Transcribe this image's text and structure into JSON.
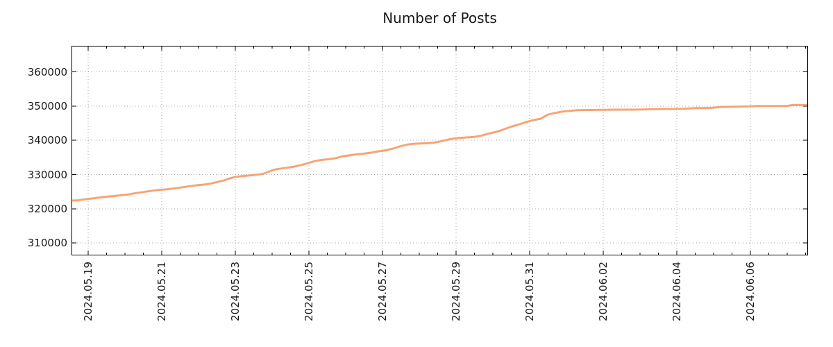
{
  "chart": {
    "title": "Number of Posts"
  },
  "chart_data": {
    "type": "line",
    "title": "Number of Posts",
    "xlabel": "",
    "ylabel": "",
    "legend_position": "none",
    "grid": "dotted",
    "line_color": "#F7A474",
    "axis_color": "#000000",
    "grid_color": "#a6a6a6",
    "text_color": "#1a1a1a",
    "y_ticks": [
      310000,
      320000,
      330000,
      340000,
      350000,
      360000
    ],
    "x_ticks": [
      {
        "label": "2024.05.19",
        "day": 0
      },
      {
        "label": "2024.05.21",
        "day": 2
      },
      {
        "label": "2024.05.23",
        "day": 4
      },
      {
        "label": "2024.05.25",
        "day": 6
      },
      {
        "label": "2024.05.27",
        "day": 8
      },
      {
        "label": "2024.05.29",
        "day": 10
      },
      {
        "label": "2024.05.31",
        "day": 12
      },
      {
        "label": "2024.06.02",
        "day": 14
      },
      {
        "label": "2024.06.04",
        "day": 16
      },
      {
        "label": "2024.06.06",
        "day": 18
      }
    ],
    "x_minor_tick_interval_days": 0.5,
    "x_range_days": [
      -0.45,
      19.57
    ],
    "y_range": [
      306400,
      367600
    ],
    "series": [
      {
        "name": "Number of Posts",
        "points": [
          [
            -0.45,
            322400
          ],
          [
            -0.3,
            322450
          ],
          [
            -0.15,
            322700
          ],
          [
            0,
            322900
          ],
          [
            0.15,
            323050
          ],
          [
            0.3,
            323300
          ],
          [
            0.5,
            323550
          ],
          [
            0.7,
            323700
          ],
          [
            0.9,
            324000
          ],
          [
            1.1,
            324200
          ],
          [
            1.3,
            324600
          ],
          [
            1.5,
            324900
          ],
          [
            1.7,
            325200
          ],
          [
            1.9,
            325500
          ],
          [
            2.1,
            325650
          ],
          [
            2.3,
            325900
          ],
          [
            2.5,
            326200
          ],
          [
            2.7,
            326500
          ],
          [
            2.9,
            326800
          ],
          [
            3.1,
            327000
          ],
          [
            3.3,
            327300
          ],
          [
            3.5,
            327800
          ],
          [
            3.7,
            328300
          ],
          [
            3.85,
            328900
          ],
          [
            4.0,
            329300
          ],
          [
            4.15,
            329500
          ],
          [
            4.35,
            329700
          ],
          [
            4.55,
            329900
          ],
          [
            4.75,
            330200
          ],
          [
            4.9,
            330800
          ],
          [
            5.05,
            331400
          ],
          [
            5.2,
            331700
          ],
          [
            5.4,
            332000
          ],
          [
            5.6,
            332300
          ],
          [
            5.8,
            332800
          ],
          [
            6.0,
            333400
          ],
          [
            6.15,
            333900
          ],
          [
            6.3,
            334200
          ],
          [
            6.5,
            334450
          ],
          [
            6.7,
            334700
          ],
          [
            6.9,
            335300
          ],
          [
            7.1,
            335600
          ],
          [
            7.3,
            335900
          ],
          [
            7.5,
            336100
          ],
          [
            7.7,
            336400
          ],
          [
            7.9,
            336800
          ],
          [
            8.1,
            337100
          ],
          [
            8.3,
            337600
          ],
          [
            8.5,
            338300
          ],
          [
            8.7,
            338800
          ],
          [
            8.85,
            339000
          ],
          [
            9.1,
            339100
          ],
          [
            9.3,
            339200
          ],
          [
            9.5,
            339500
          ],
          [
            9.7,
            340000
          ],
          [
            9.9,
            340450
          ],
          [
            10.1,
            340700
          ],
          [
            10.3,
            340850
          ],
          [
            10.5,
            341000
          ],
          [
            10.7,
            341400
          ],
          [
            10.9,
            342000
          ],
          [
            11.1,
            342500
          ],
          [
            11.3,
            343200
          ],
          [
            11.5,
            344000
          ],
          [
            11.7,
            344600
          ],
          [
            11.9,
            345300
          ],
          [
            12.1,
            345900
          ],
          [
            12.3,
            346300
          ],
          [
            12.5,
            347500
          ],
          [
            12.7,
            348000
          ],
          [
            12.9,
            348400
          ],
          [
            13.1,
            348600
          ],
          [
            13.3,
            348800
          ],
          [
            13.6,
            348850
          ],
          [
            14.0,
            348900
          ],
          [
            14.4,
            348950
          ],
          [
            14.8,
            348950
          ],
          [
            15.1,
            349000
          ],
          [
            15.4,
            349100
          ],
          [
            15.8,
            349150
          ],
          [
            16.2,
            349200
          ],
          [
            16.5,
            349400
          ],
          [
            16.9,
            349450
          ],
          [
            17.2,
            349750
          ],
          [
            17.6,
            349820
          ],
          [
            18.0,
            349900
          ],
          [
            18.15,
            350000
          ],
          [
            18.6,
            350020
          ],
          [
            19.0,
            350050
          ],
          [
            19.15,
            350300
          ],
          [
            19.57,
            350330
          ]
        ]
      }
    ]
  }
}
